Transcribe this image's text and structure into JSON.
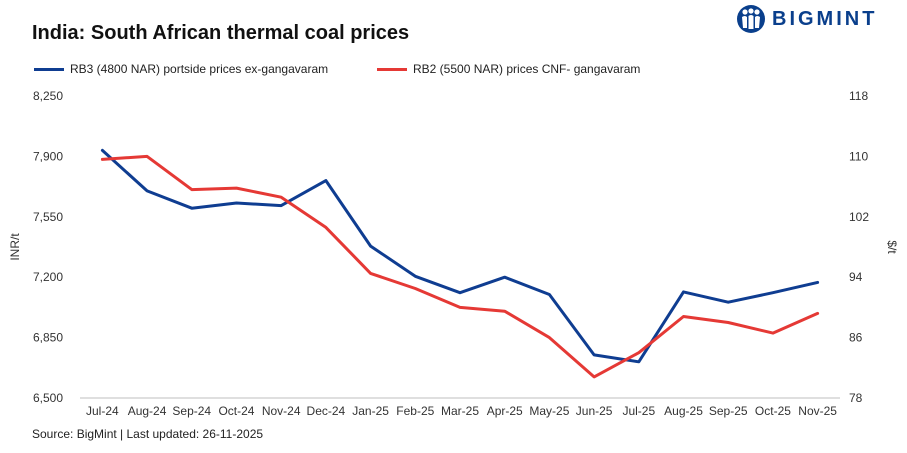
{
  "title": "India: South African thermal coal prices",
  "brand": {
    "name": "BIGMINT",
    "color": "#0a3f8c"
  },
  "source": "Source: BigMint | Last updated: 26-11-2025",
  "chart_data": {
    "type": "line",
    "title": "India: South African thermal coal prices",
    "categories": [
      "Jul-24",
      "Aug-24",
      "Sep-24",
      "Oct-24",
      "Nov-24",
      "Dec-24",
      "Jan-25",
      "Feb-25",
      "Mar-25",
      "Apr-25",
      "May-25",
      "Jun-25",
      "Jul-25",
      "Aug-25",
      "Sep-25",
      "Oct-25",
      "Nov-25"
    ],
    "ylabel": "INR/t",
    "y2label": "$/t",
    "ylim": [
      6500,
      8250
    ],
    "y2lim": [
      78,
      118
    ],
    "yticks": [
      "6,500",
      "6,850",
      "7,200",
      "7,550",
      "7,900",
      "8,250"
    ],
    "y2ticks": [
      "78",
      "86",
      "94",
      "102",
      "110",
      "118"
    ],
    "legend_position": "top",
    "series": [
      {
        "name": "RB3 (4800 NAR) portside prices ex-gangavaram",
        "axis": "left",
        "color": "#0f3d91",
        "values": [
          7935,
          7700,
          7600,
          7630,
          7615,
          7760,
          7380,
          7205,
          7110,
          7200,
          7100,
          6750,
          6710,
          7115,
          7055,
          7110,
          7170
        ]
      },
      {
        "name": "RB2 (5500 NAR) prices CNF- gangavaram",
        "axis": "right",
        "color": "#e53935",
        "values": [
          109.6,
          110.0,
          105.6,
          105.8,
          104.6,
          100.6,
          94.5,
          92.5,
          90.0,
          89.5,
          86.0,
          80.8,
          84.0,
          88.8,
          88.0,
          86.6,
          89.2
        ]
      }
    ]
  }
}
